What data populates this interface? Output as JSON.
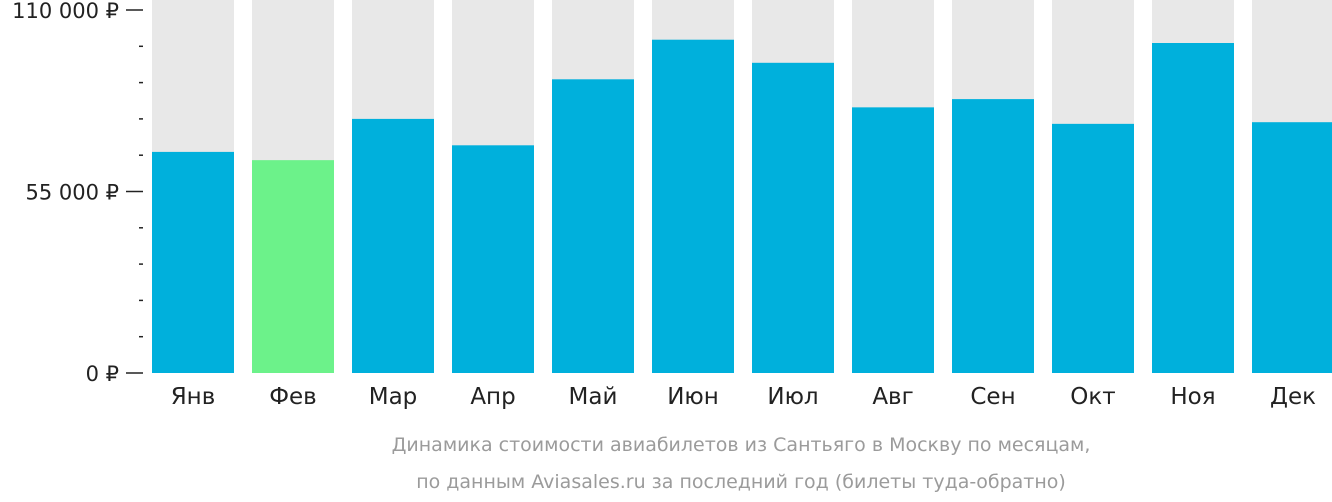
{
  "chart_data": {
    "type": "bar",
    "categories": [
      "Янв",
      "Фев",
      "Мар",
      "Апр",
      "Май",
      "Июн",
      "Июл",
      "Авг",
      "Сен",
      "Окт",
      "Ноя",
      "Дек"
    ],
    "values": [
      67000,
      64500,
      77000,
      69000,
      89000,
      101000,
      94000,
      80500,
      83000,
      75500,
      100000,
      76000
    ],
    "ylim": [
      0,
      110000
    ],
    "y_ticks": [
      {
        "value": 110000,
        "label": "110 000 ₽"
      },
      {
        "value": 55000,
        "label": "55 000 ₽"
      },
      {
        "value": 0,
        "label": "0 ₽"
      }
    ],
    "minor_tick_step": 11000,
    "highlight_index": 1,
    "colors": {
      "bar": "#00b0dc",
      "highlight": "#6cf28a",
      "background_bar": "#e8e8e8",
      "axis": "#222222",
      "caption": "#9b9b9b"
    },
    "caption_lines": [
      "Динамика стоимости авиабилетов из Сантьяго в Москву по месяцам,",
      "по данным Aviasales.ru за последний год (билеты туда-обратно)"
    ],
    "title": "",
    "xlabel": "",
    "ylabel": ""
  }
}
